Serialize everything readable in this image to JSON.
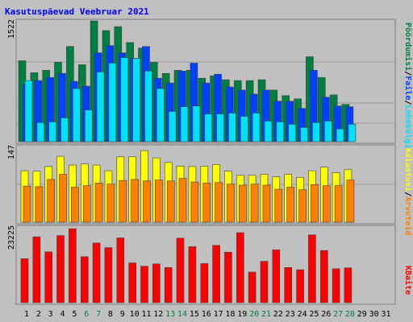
{
  "title": "Kasutuspäevad Veebruar 2021",
  "colors": {
    "background": "#C0C0C0",
    "title": "#0000FF",
    "hits": "#008040",
    "files": "#0040FF",
    "pages": "#00E0FF",
    "visits": "#FFFF00",
    "sites": "#FF8000",
    "kbytes": "#FF0000",
    "weekday_label": "#000000",
    "weekend_label": "#008040"
  },
  "right_labels": {
    "top": {
      "hits": "Pöördumisi",
      "sep1": "/",
      "files": "Faile",
      "sep2": "/",
      "pages": "Lehekülgi"
    },
    "middle": {
      "visits": "Külastusi",
      "sep": "/",
      "sites": "Arvuteid"
    },
    "bottom": {
      "kbytes": "KBaite"
    }
  },
  "chart_data": [
    {
      "type": "bar",
      "panel": "top",
      "categories": [
        "1",
        "2",
        "3",
        "4",
        "5",
        "6",
        "7",
        "8",
        "9",
        "10",
        "11",
        "12",
        "13",
        "14",
        "15",
        "16",
        "17",
        "18",
        "19",
        "20",
        "21",
        "22",
        "23",
        "24",
        "25",
        "26",
        "27",
        "28",
        "29",
        "30",
        "31"
      ],
      "ymax_label": "1522",
      "ylim": [
        0,
        1522
      ],
      "series": [
        {
          "name": "Pöördumisi",
          "values": [
            1020,
            870,
            900,
            1000,
            1200,
            970,
            1522,
            1400,
            1450,
            1250,
            1180,
            1000,
            860,
            900,
            900,
            800,
            830,
            780,
            770,
            770,
            780,
            650,
            580,
            540,
            1070,
            810,
            590,
            470,
            null,
            null,
            null
          ]
        },
        {
          "name": "Faile",
          "values": [
            720,
            770,
            810,
            860,
            760,
            700,
            1120,
            1210,
            1120,
            1050,
            1200,
            800,
            740,
            890,
            990,
            740,
            850,
            690,
            650,
            600,
            650,
            510,
            510,
            420,
            900,
            560,
            450,
            440,
            null,
            null,
            null
          ]
        },
        {
          "name": "Lehekülgi",
          "values": [
            770,
            240,
            250,
            300,
            670,
            400,
            880,
            990,
            1060,
            1050,
            890,
            670,
            380,
            440,
            450,
            350,
            350,
            360,
            320,
            360,
            260,
            250,
            220,
            180,
            240,
            260,
            160,
            220,
            null,
            null,
            null
          ]
        }
      ]
    },
    {
      "type": "bar",
      "panel": "middle",
      "categories": [
        "1",
        "2",
        "3",
        "4",
        "5",
        "6",
        "7",
        "8",
        "9",
        "10",
        "11",
        "12",
        "13",
        "14",
        "15",
        "16",
        "17",
        "18",
        "19",
        "20",
        "21",
        "22",
        "23",
        "24",
        "25",
        "26",
        "27",
        "28",
        "29",
        "30",
        "31"
      ],
      "ymax_label": "147",
      "ylim": [
        0,
        147
      ],
      "series": [
        {
          "name": "Külastusi",
          "values": [
            100,
            99,
            108,
            128,
            111,
            113,
            111,
            100,
            127,
            127,
            139,
            125,
            116,
            109,
            108,
            109,
            112,
            99,
            91,
            91,
            93,
            88,
            93,
            87,
            100,
            107,
            96,
            102,
            null,
            null,
            null
          ]
        },
        {
          "name": "Arvuteid",
          "values": [
            70,
            69,
            83,
            93,
            68,
            71,
            76,
            74,
            81,
            83,
            80,
            82,
            80,
            85,
            78,
            76,
            77,
            74,
            72,
            74,
            72,
            64,
            68,
            63,
            73,
            71,
            71,
            82,
            null,
            null,
            null
          ]
        }
      ]
    },
    {
      "type": "bar",
      "panel": "bottom",
      "categories": [
        "1",
        "2",
        "3",
        "4",
        "5",
        "6",
        "7",
        "8",
        "9",
        "10",
        "11",
        "12",
        "13",
        "14",
        "15",
        "16",
        "17",
        "18",
        "19",
        "20",
        "21",
        "22",
        "23",
        "24",
        "25",
        "26",
        "27",
        "28",
        "29",
        "30",
        "31"
      ],
      "ymax_label": "23225",
      "ylim": [
        0,
        23225
      ],
      "series": [
        {
          "name": "KBaite",
          "values": [
            13500,
            20200,
            15600,
            20600,
            22700,
            14100,
            18300,
            16900,
            19900,
            12200,
            11200,
            11900,
            10800,
            19800,
            17200,
            12000,
            17600,
            15500,
            21500,
            9400,
            12700,
            16200,
            10800,
            10100,
            20800,
            16000,
            10400,
            10700,
            null,
            null,
            null
          ]
        }
      ]
    }
  ]
}
